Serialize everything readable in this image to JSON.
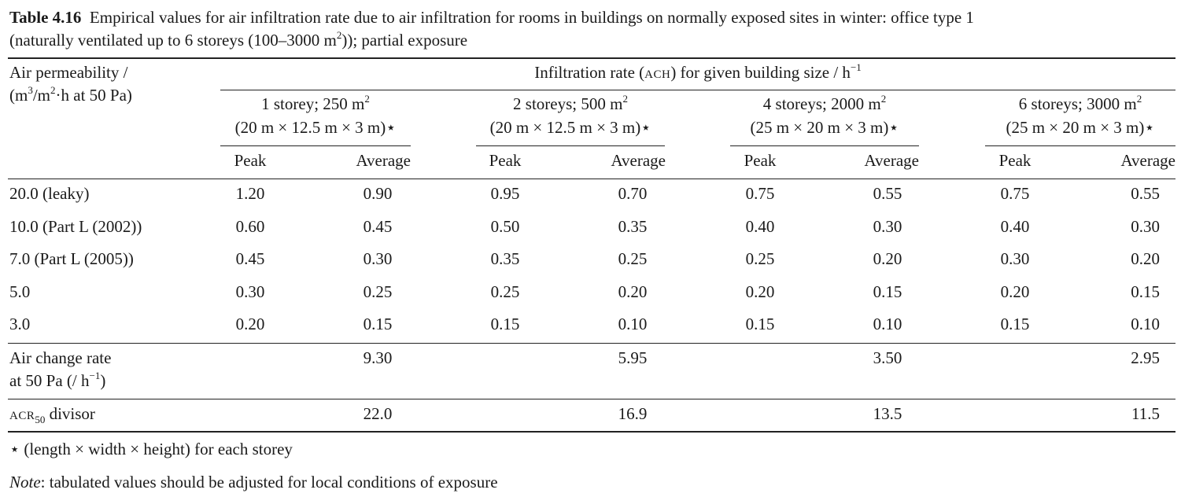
{
  "caption": {
    "label": "Table 4.16",
    "text_line1": "Empirical values for air infiltration rate due to air infiltration for rooms in buildings on normally exposed sites in winter: office type 1",
    "text_line2_a": "(naturally ventilated up to 6 storeys (100–3000 m",
    "text_line2_sup": "2",
    "text_line2_b": ")); partial exposure"
  },
  "header": {
    "rowlabel_line1": "Air permeability /",
    "rowlabel_line2_a": "(m",
    "rowlabel_line2_sup1": "3",
    "rowlabel_line2_b": "/m",
    "rowlabel_line2_sup2": "2",
    "rowlabel_line2_c": "·h at 50 Pa)",
    "spanner_a": "Infiltration rate (",
    "spanner_sc": "ACH",
    "spanner_b": ") for given building size / h",
    "spanner_sup": "−1",
    "groups": [
      {
        "line1": "1 storey; 250 m",
        "sup": "2",
        "line2": "(20 m × 12.5 m × 3 m)⋆"
      },
      {
        "line1": "2 storeys; 500 m",
        "sup": "2",
        "line2": "(20 m × 12.5 m × 3 m)⋆"
      },
      {
        "line1": "4 storeys; 2000 m",
        "sup": "2",
        "line2": "(25 m × 20 m × 3 m)⋆"
      },
      {
        "line1": "6 storeys; 3000 m",
        "sup": "2",
        "line2": "(25 m × 20 m × 3 m)⋆"
      }
    ],
    "peak_label": "Peak",
    "average_label": "Average"
  },
  "rows": [
    {
      "label": "20.0 (leaky)",
      "values": [
        "1.20",
        "0.90",
        "0.95",
        "0.70",
        "0.75",
        "0.55",
        "0.75",
        "0.55"
      ]
    },
    {
      "label": "10.0 (Part L (2002))",
      "values": [
        "0.60",
        "0.45",
        "0.50",
        "0.35",
        "0.40",
        "0.30",
        "0.40",
        "0.30"
      ]
    },
    {
      "label": "7.0 (Part L (2005))",
      "values": [
        "0.45",
        "0.30",
        "0.35",
        "0.25",
        "0.25",
        "0.20",
        "0.30",
        "0.20"
      ]
    },
    {
      "label": "5.0",
      "values": [
        "0.30",
        "0.25",
        "0.25",
        "0.20",
        "0.20",
        "0.15",
        "0.20",
        "0.15"
      ]
    },
    {
      "label": "3.0",
      "values": [
        "0.20",
        "0.15",
        "0.15",
        "0.10",
        "0.15",
        "0.10",
        "0.15",
        "0.10"
      ]
    }
  ],
  "acr_row": {
    "label_line1": "Air change rate",
    "label_line2_a": "at 50 Pa (/ h",
    "label_line2_sup": "−1",
    "label_line2_b": ")",
    "values": [
      "9.30",
      "5.95",
      "3.50",
      "2.95"
    ]
  },
  "divisor_row": {
    "label_sc": "ACR",
    "label_sub": "50",
    "label_b": " divisor",
    "values": [
      "22.0",
      "16.9",
      "13.5",
      "11.5"
    ]
  },
  "footnote_star": "⋆ (length × width × height) for each storey",
  "note_label": "Note",
  "note_text": ": tabulated values should be adjusted for local conditions of exposure"
}
